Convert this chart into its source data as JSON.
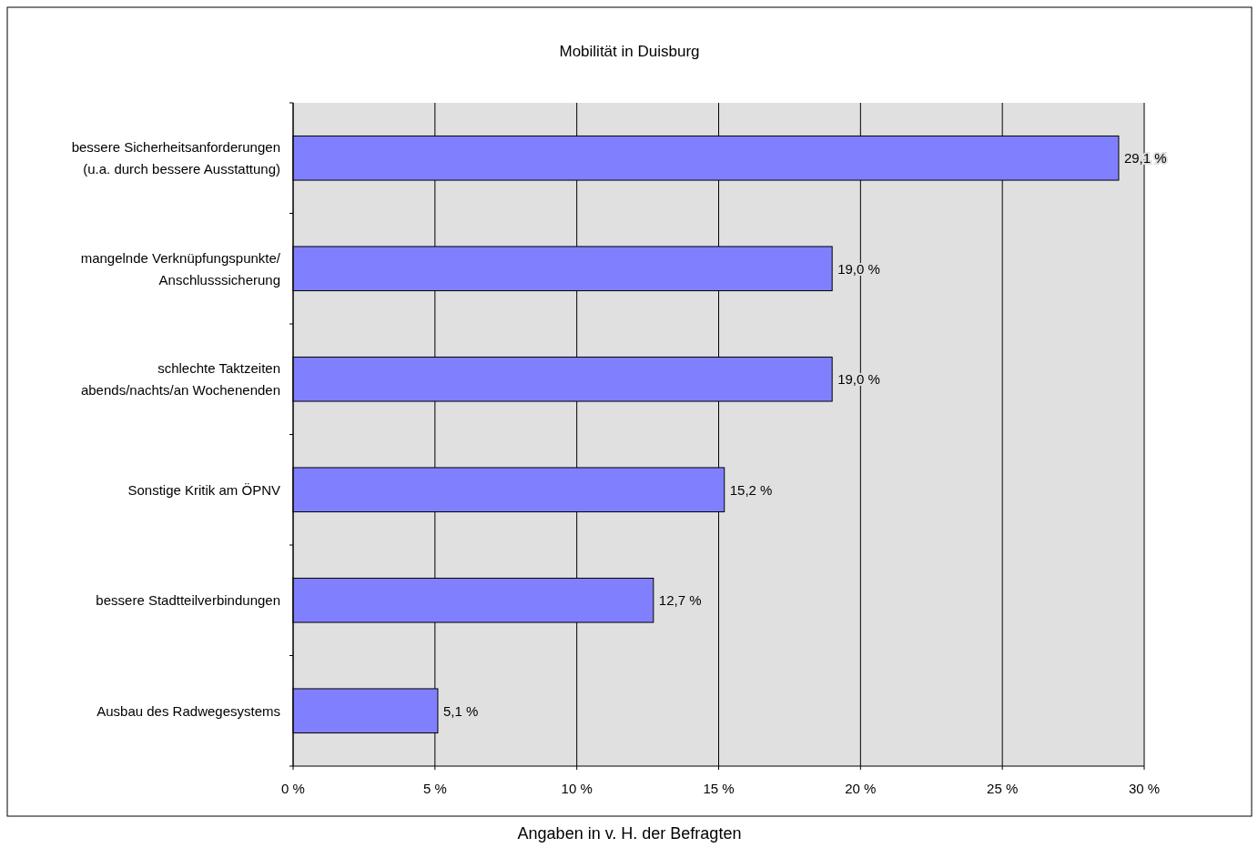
{
  "chart_data": {
    "type": "bar",
    "orientation": "horizontal",
    "title": "Mobilität in Duisburg",
    "xlabel": "Angaben in v. H. der Befragten",
    "categories": [
      "bessere Sicherheitsanforderungen\n(u.a. durch bessere Ausstattung)",
      "mangelnde Verknüpfungspunkte/\nAnschlusssicherung",
      "schlechte Taktzeiten\nabends/nachts/an Wochenenden",
      "Sonstige Kritik am ÖPNV",
      "bessere Stadtteilverbindungen",
      "Ausbau des Radwegesystems"
    ],
    "values": [
      29.1,
      19.0,
      19.0,
      15.2,
      12.7,
      5.1
    ],
    "value_labels": [
      "29,1 %",
      "19,0 %",
      "19,0 %",
      "15,2 %",
      "12,7 %",
      "5,1 %"
    ],
    "color": "#8080ff",
    "xlim": [
      0,
      30
    ],
    "xticks": [
      {
        "value": 0,
        "label": "0 %"
      },
      {
        "value": 5,
        "label": "5 %"
      },
      {
        "value": 10,
        "label": "10 %"
      },
      {
        "value": 15,
        "label": "15 %"
      },
      {
        "value": 20,
        "label": "20 %"
      },
      {
        "value": 25,
        "label": "25 %"
      },
      {
        "value": 30,
        "label": "30 %"
      }
    ],
    "grid": "x"
  }
}
